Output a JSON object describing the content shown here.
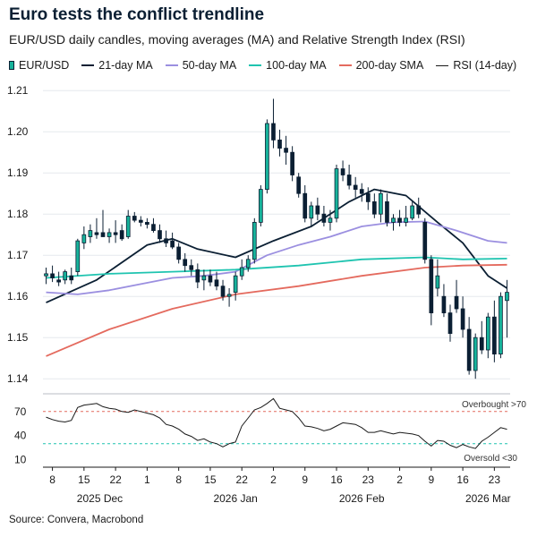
{
  "header": {
    "title": "Euro tests the conflict trendline",
    "subtitle": "EUR/USD daily candles, moving averages (MA) and Relative Strength Index (RSI)"
  },
  "legend": [
    {
      "name": "EUR/USD",
      "color": "#17b39b",
      "kind": "candle"
    },
    {
      "name": "21-day MA",
      "color": "#0b1f33",
      "kind": "line"
    },
    {
      "name": "50-day MA",
      "color": "#9b8fe0",
      "kind": "line"
    },
    {
      "name": "100-day MA",
      "color": "#1fc4b0",
      "kind": "line"
    },
    {
      "name": "200-day SMA",
      "color": "#e46a5e",
      "kind": "line"
    },
    {
      "name": "RSI (14-day)",
      "color": "#1a1a1a",
      "kind": "line"
    }
  ],
  "source": "Source: Convera, Macrobond",
  "chart_data": [
    {
      "type": "candlestick",
      "ylim": [
        1.137,
        1.212
      ],
      "yticks": [
        "1.14",
        "1.15",
        "1.16",
        "1.17",
        "1.18",
        "1.19",
        "1.20",
        "1.21"
      ],
      "ytick_values": [
        1.14,
        1.15,
        1.16,
        1.17,
        1.18,
        1.19,
        1.2,
        1.21
      ],
      "xtick_labels": [
        "8",
        "15",
        "22",
        "1",
        "8",
        "15",
        "22",
        "2",
        "9",
        "16",
        "23",
        "2",
        "9",
        "16",
        "23"
      ],
      "xtick_index": [
        1,
        6,
        11,
        16,
        21,
        26,
        31,
        36,
        41,
        46,
        51,
        56,
        61,
        66,
        71
      ],
      "month_labels": [
        "2025 Dec",
        "2026 Jan",
        "2026 Feb",
        "2026 Mar"
      ],
      "month_index": [
        8.5,
        30,
        50,
        70
      ],
      "x_count": 74,
      "candles": [
        [
          1.165,
          1.167,
          1.163,
          1.1655
        ],
        [
          1.1655,
          1.1675,
          1.1635,
          1.1645
        ],
        [
          1.164,
          1.166,
          1.1625,
          1.1635
        ],
        [
          1.164,
          1.1665,
          1.163,
          1.166
        ],
        [
          1.165,
          1.167,
          1.163,
          1.164
        ],
        [
          1.166,
          1.174,
          1.165,
          1.1735
        ],
        [
          1.173,
          1.177,
          1.1715,
          1.175
        ],
        [
          1.1745,
          1.1775,
          1.173,
          1.176
        ],
        [
          1.1755,
          1.179,
          1.174,
          1.175
        ],
        [
          1.1755,
          1.181,
          1.1745,
          1.1745
        ],
        [
          1.1745,
          1.1765,
          1.173,
          1.1755
        ],
        [
          1.1755,
          1.1785,
          1.173,
          1.175
        ],
        [
          1.176,
          1.1775,
          1.1735,
          1.174
        ],
        [
          1.1745,
          1.181,
          1.174,
          1.1795
        ],
        [
          1.1795,
          1.1805,
          1.178,
          1.1785
        ],
        [
          1.1785,
          1.1795,
          1.177,
          1.178
        ],
        [
          1.178,
          1.179,
          1.1765,
          1.1775
        ],
        [
          1.1775,
          1.179,
          1.1755,
          1.176
        ],
        [
          1.176,
          1.1775,
          1.173,
          1.174
        ],
        [
          1.174,
          1.176,
          1.172,
          1.173
        ],
        [
          1.1735,
          1.1755,
          1.1715,
          1.172
        ],
        [
          1.172,
          1.173,
          1.168,
          1.169
        ],
        [
          1.169,
          1.1705,
          1.166,
          1.1675
        ],
        [
          1.1675,
          1.169,
          1.165,
          1.1665
        ],
        [
          1.1665,
          1.168,
          1.162,
          1.1635
        ],
        [
          1.164,
          1.1665,
          1.1615,
          1.165
        ],
        [
          1.165,
          1.1665,
          1.1625,
          1.1635
        ],
        [
          1.164,
          1.166,
          1.1615,
          1.1625
        ],
        [
          1.1625,
          1.164,
          1.159,
          1.16
        ],
        [
          1.16,
          1.162,
          1.1575,
          1.1605
        ],
        [
          1.161,
          1.166,
          1.159,
          1.165
        ],
        [
          1.165,
          1.169,
          1.164,
          1.167
        ],
        [
          1.167,
          1.17,
          1.166,
          1.169
        ],
        [
          1.169,
          1.179,
          1.168,
          1.178
        ],
        [
          1.178,
          1.187,
          1.177,
          1.186
        ],
        [
          1.186,
          1.203,
          1.185,
          1.202
        ],
        [
          1.202,
          1.208,
          1.196,
          1.198
        ],
        [
          1.198,
          1.2005,
          1.194,
          1.196
        ],
        [
          1.196,
          1.199,
          1.192,
          1.195
        ],
        [
          1.195,
          1.1965,
          1.188,
          1.1895
        ],
        [
          1.189,
          1.19,
          1.184,
          1.185
        ],
        [
          1.185,
          1.187,
          1.178,
          1.179
        ],
        [
          1.179,
          1.183,
          1.177,
          1.182
        ],
        [
          1.182,
          1.184,
          1.1785,
          1.18
        ],
        [
          1.18,
          1.182,
          1.177,
          1.178
        ],
        [
          1.178,
          1.181,
          1.176,
          1.179
        ],
        [
          1.179,
          1.192,
          1.178,
          1.191
        ],
        [
          1.191,
          1.193,
          1.188,
          1.1895
        ],
        [
          1.1895,
          1.192,
          1.186,
          1.187
        ],
        [
          1.187,
          1.189,
          1.184,
          1.186
        ],
        [
          1.186,
          1.1875,
          1.183,
          1.185
        ],
        [
          1.185,
          1.1865,
          1.181,
          1.183
        ],
        [
          1.183,
          1.185,
          1.179,
          1.18
        ],
        [
          1.18,
          1.186,
          1.178,
          1.185
        ],
        [
          1.183,
          1.185,
          1.177,
          1.178
        ],
        [
          1.178,
          1.18,
          1.176,
          1.179
        ],
        [
          1.179,
          1.181,
          1.177,
          1.178
        ],
        [
          1.178,
          1.182,
          1.177,
          1.179
        ],
        [
          1.179,
          1.183,
          1.1785,
          1.182
        ],
        [
          1.182,
          1.184,
          1.179,
          1.18
        ],
        [
          1.178,
          1.179,
          1.168,
          1.169
        ],
        [
          1.169,
          1.17,
          1.153,
          1.156
        ],
        [
          1.162,
          1.169,
          1.16,
          1.165
        ],
        [
          1.16,
          1.163,
          1.155,
          1.156
        ],
        [
          1.156,
          1.158,
          1.149,
          1.151
        ],
        [
          1.16,
          1.164,
          1.156,
          1.157
        ],
        [
          1.157,
          1.16,
          1.15,
          1.152
        ],
        [
          1.152,
          1.155,
          1.141,
          1.142
        ],
        [
          1.142,
          1.151,
          1.14,
          1.15
        ],
        [
          1.15,
          1.154,
          1.146,
          1.147
        ],
        [
          1.147,
          1.156,
          1.145,
          1.155
        ],
        [
          1.155,
          1.159,
          1.144,
          1.146
        ],
        [
          1.146,
          1.161,
          1.145,
          1.16
        ],
        [
          1.159,
          1.164,
          1.15,
          1.161
        ]
      ],
      "series": [
        {
          "name": "21-day MA",
          "x": [
            0,
            8,
            16,
            20,
            24,
            30,
            36,
            42,
            48,
            52,
            57,
            62,
            66,
            70,
            73
          ],
          "values": [
            1.1585,
            1.164,
            1.1725,
            1.174,
            1.1715,
            1.1695,
            1.1735,
            1.177,
            1.183,
            1.186,
            1.1845,
            1.178,
            1.173,
            1.165,
            1.162
          ]
        },
        {
          "name": "50-day MA",
          "x": [
            0,
            5,
            10,
            15,
            20,
            25,
            30,
            35,
            40,
            45,
            50,
            55,
            60,
            65,
            70,
            73
          ],
          "values": [
            1.161,
            1.1605,
            1.1615,
            1.163,
            1.1645,
            1.165,
            1.166,
            1.17,
            1.1725,
            1.1745,
            1.177,
            1.178,
            1.1782,
            1.176,
            1.1735,
            1.173
          ]
        },
        {
          "name": "100-day MA",
          "x": [
            0,
            10,
            20,
            30,
            40,
            50,
            60,
            66,
            73
          ],
          "values": [
            1.1645,
            1.1655,
            1.166,
            1.1665,
            1.1675,
            1.169,
            1.1695,
            1.169,
            1.1692
          ]
        },
        {
          "name": "200-day SMA",
          "x": [
            0,
            10,
            20,
            30,
            40,
            50,
            60,
            66,
            73
          ],
          "values": [
            1.1455,
            1.152,
            1.157,
            1.1605,
            1.1625,
            1.165,
            1.167,
            1.1675,
            1.1677
          ]
        }
      ]
    },
    {
      "type": "line",
      "ylim": [
        3,
        92
      ],
      "yticks": [
        "10",
        "40",
        "70"
      ],
      "ytick_values": [
        10,
        40,
        70
      ],
      "series": [
        {
          "name": "RSI (14-day)",
          "values": [
            63,
            60,
            58,
            57,
            59,
            75,
            78,
            79,
            80,
            76,
            74,
            73,
            70,
            69,
            72,
            70,
            68,
            66,
            62,
            54,
            52,
            48,
            42,
            39,
            34,
            36,
            32,
            30,
            26,
            30,
            32,
            52,
            62,
            72,
            75,
            80,
            86,
            74,
            72,
            70,
            62,
            52,
            51,
            49,
            46,
            48,
            52,
            56,
            55,
            54,
            50,
            44,
            44,
            46,
            44,
            42,
            44,
            43,
            42,
            40,
            33,
            27,
            34,
            33,
            28,
            25,
            29,
            26,
            24,
            33,
            38,
            44,
            50,
            48
          ]
        },
        {
          "name": "Overbought",
          "values": [
            70
          ]
        },
        {
          "name": "Oversold",
          "values": [
            30
          ]
        }
      ],
      "annotations": [
        "Overbought >70",
        "Oversold <30"
      ]
    }
  ]
}
